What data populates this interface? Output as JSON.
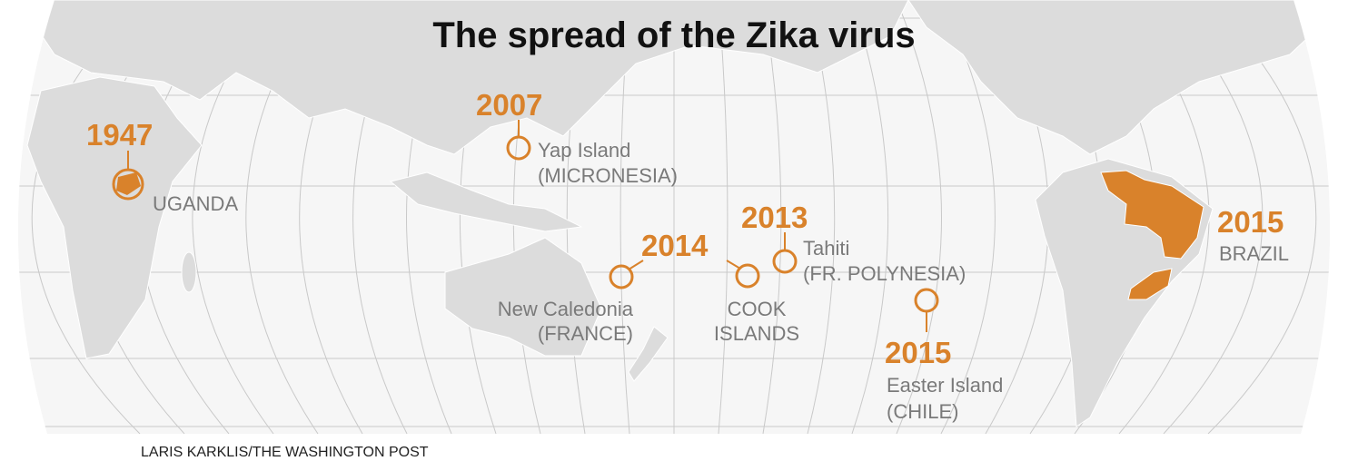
{
  "title": "The spread of the Zika virus",
  "events": [
    {
      "year": "1947",
      "places": [
        [
          "UGANDA"
        ]
      ]
    },
    {
      "year": "2007",
      "places": [
        [
          "Yap Island",
          "(MICRONESIA)"
        ]
      ]
    },
    {
      "year": "2014",
      "places": [
        [
          "New Caledonia",
          "(FRANCE)"
        ],
        [
          "COOK",
          "ISLANDS"
        ]
      ]
    },
    {
      "year": "2013",
      "places": [
        [
          "Tahiti",
          "(FR. POLYNESIA)"
        ]
      ]
    },
    {
      "year": "2015",
      "places": [
        [
          "Easter Island",
          "(CHILE)"
        ]
      ]
    },
    {
      "year": "2015",
      "places": [
        [
          "BRAZIL"
        ]
      ]
    }
  ],
  "credit": "LARIS KARKLIS/THE WASHINGTON POST"
}
